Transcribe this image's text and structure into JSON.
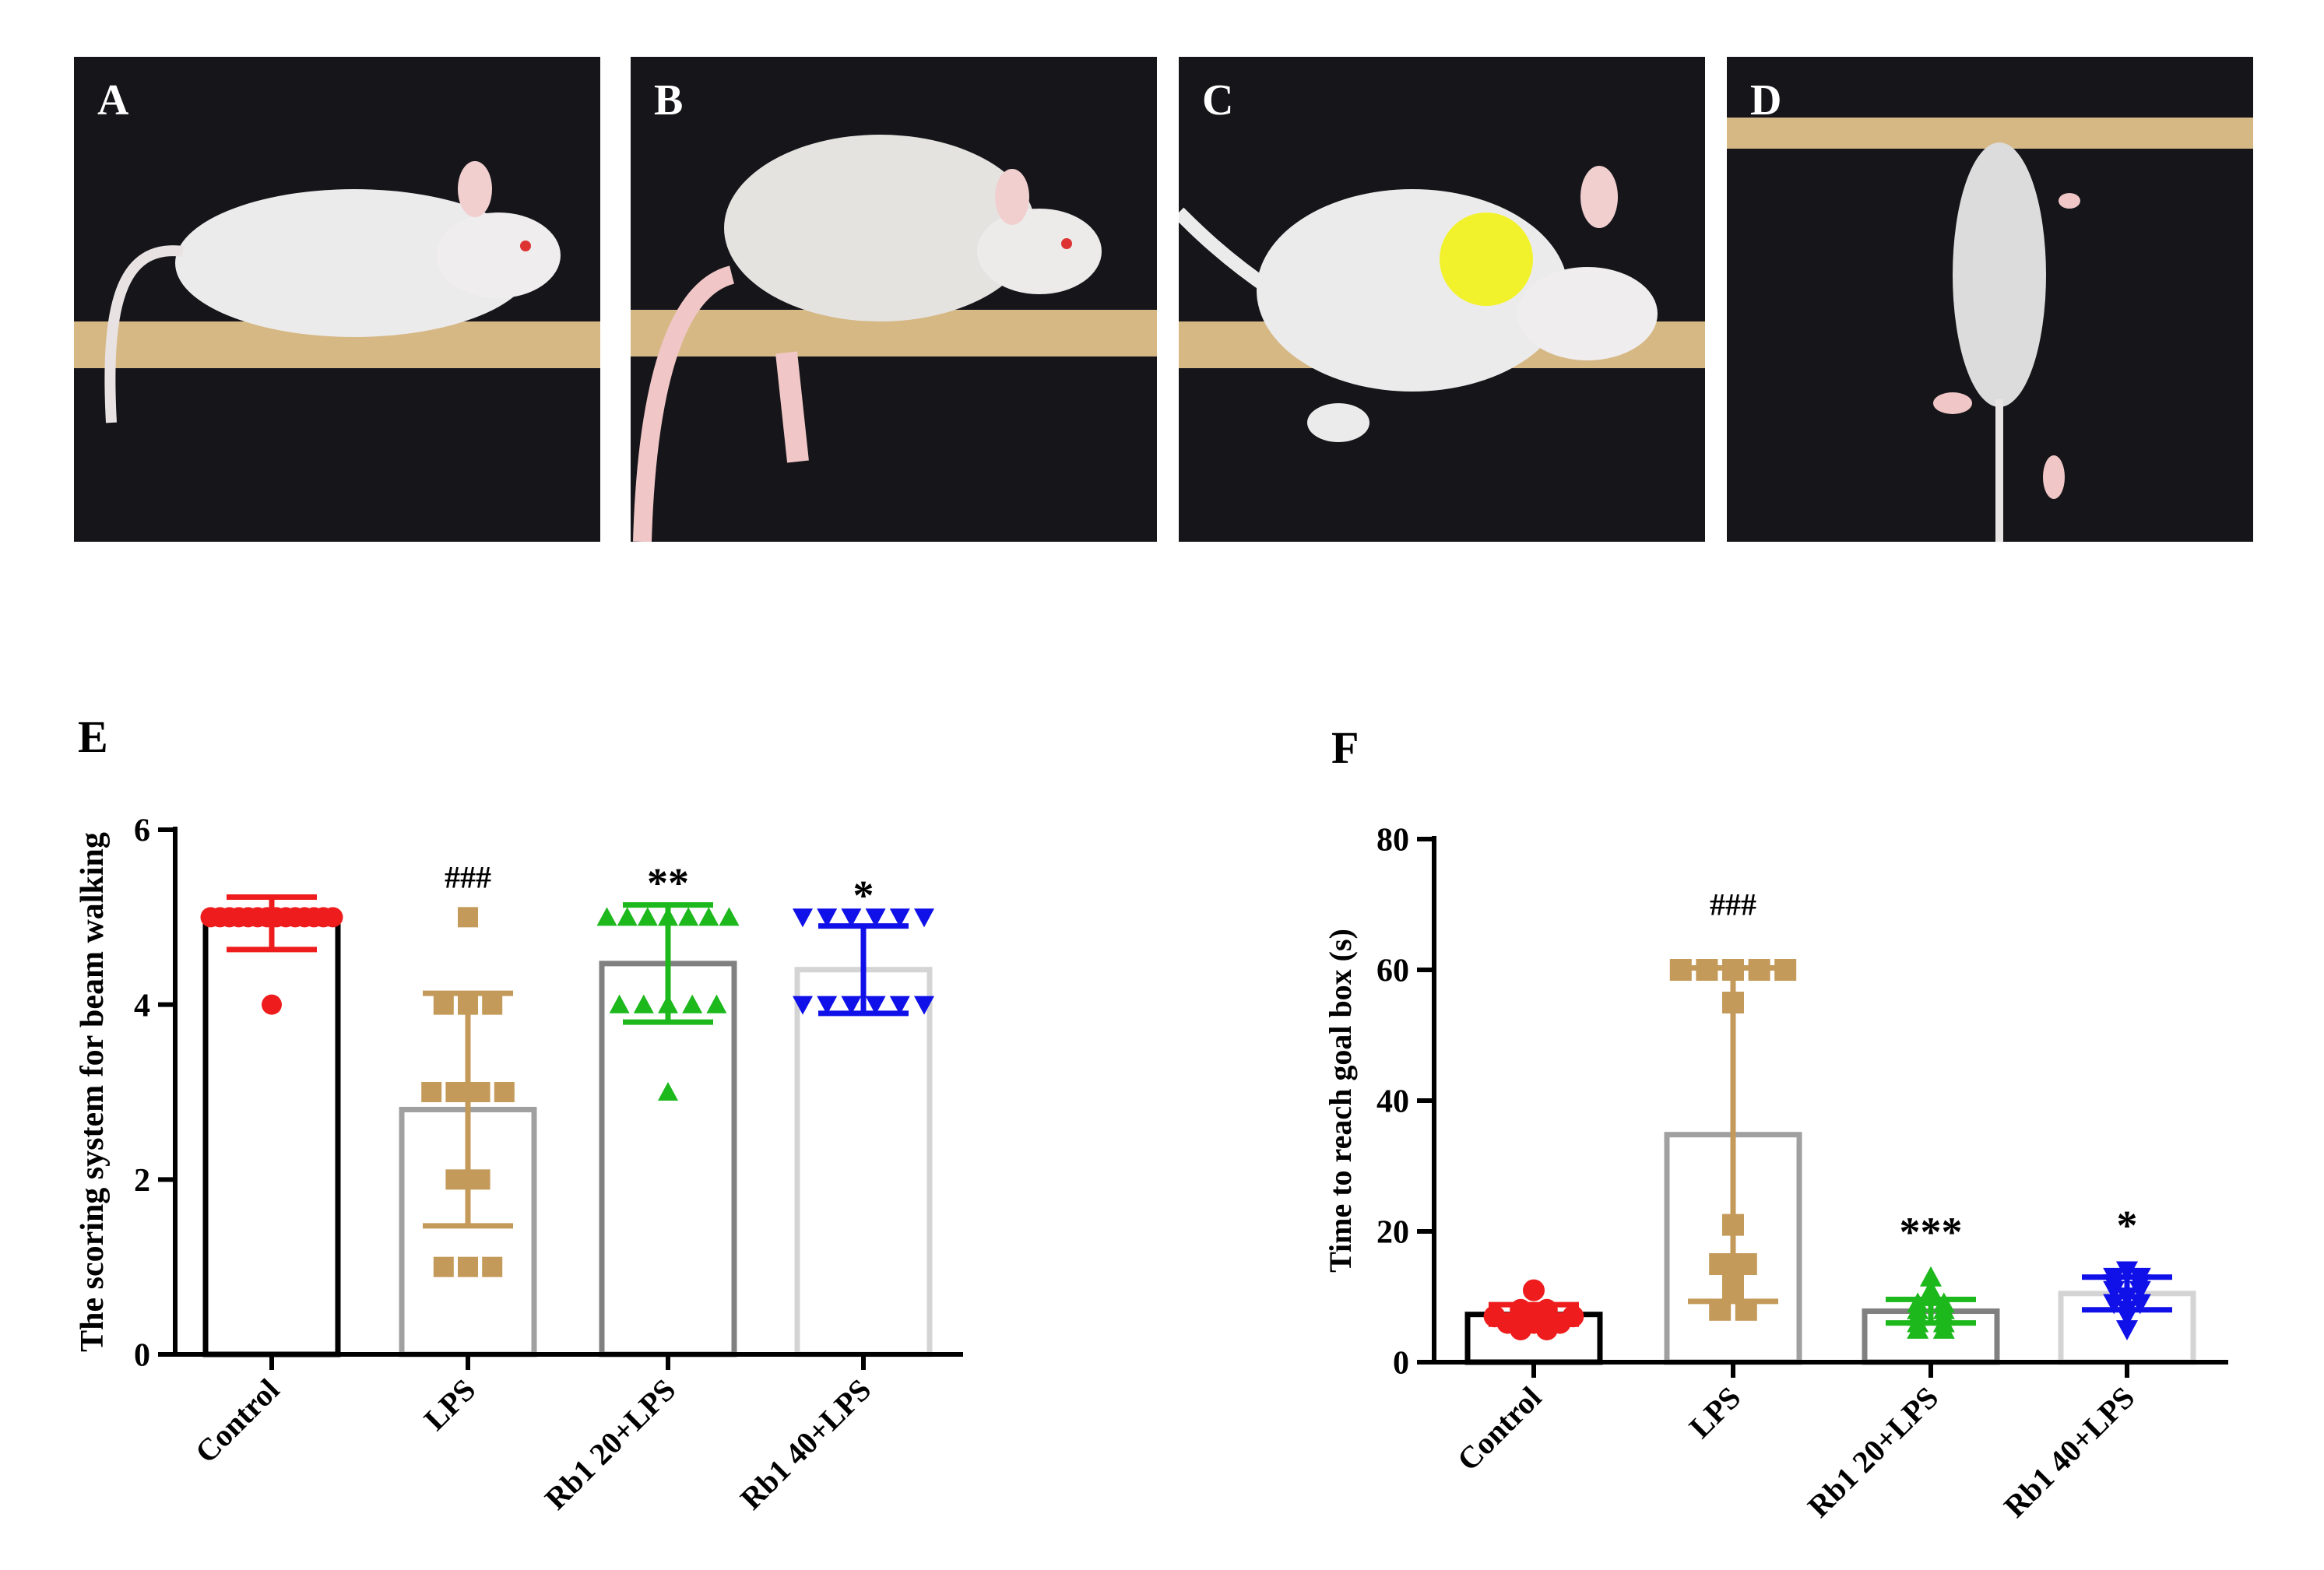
{
  "photos": [
    {
      "letter": "A",
      "description_icon": "mouse-on-beam-icon"
    },
    {
      "letter": "B",
      "description_icon": "mouse-slipping-icon"
    },
    {
      "letter": "C",
      "description_icon": "mouse-crouching-icon"
    },
    {
      "letter": "D",
      "description_icon": "mouse-hanging-icon"
    }
  ],
  "panel_labels": {
    "E": "E",
    "F": "F"
  },
  "colors": {
    "control": "#ee1c1c",
    "lps": "#c49a5a",
    "rb1_20": "#1cb81c",
    "rb1_40": "#1010e8",
    "bar_control": "#000000",
    "bar_lps": "#a0a0a0",
    "bar_rb20": "#808080",
    "bar_rb40": "#d4d4d4"
  },
  "chart_data": [
    {
      "type": "bar",
      "ylabel": "The scoring system for beam walking",
      "xlabel": "",
      "ylim": [
        0,
        6
      ],
      "yticks": [
        0,
        2,
        4,
        6
      ],
      "categories": [
        "Control",
        "LPS",
        "Rb1 20+LPS",
        "Rb1 40+LPS"
      ],
      "values": [
        4.93,
        2.8,
        4.47,
        4.4
      ],
      "sd": [
        0.3,
        1.33,
        0.67,
        0.5
      ],
      "annotations": [
        "",
        "###",
        "**",
        "*"
      ],
      "points": [
        [
          5,
          5,
          5,
          5,
          5,
          5,
          5,
          5,
          5,
          5,
          5,
          5,
          5,
          5,
          4
        ],
        [
          5,
          4,
          4,
          4,
          3,
          3,
          3,
          3,
          2,
          2,
          1,
          1,
          1
        ],
        [
          5,
          5,
          5,
          5,
          5,
          5,
          5,
          4,
          4,
          4,
          4,
          4,
          3
        ],
        [
          5,
          5,
          5,
          5,
          5,
          5,
          4,
          4,
          4,
          4,
          4,
          4
        ]
      ]
    },
    {
      "type": "bar",
      "ylabel": "Time to reach goal box (s)",
      "xlabel": "",
      "ylim": [
        0,
        80
      ],
      "yticks": [
        0,
        20,
        40,
        60,
        80
      ],
      "categories": [
        "Control",
        "LPS",
        "Rb1 20+LPS",
        "Rb1 40+LPS"
      ],
      "values": [
        7.3,
        34.8,
        7.8,
        10.5
      ],
      "sd": [
        1.5,
        25.5,
        1.8,
        2.5
      ],
      "annotations": [
        "",
        "###",
        "***",
        "*"
      ],
      "points": [
        [
          11,
          8,
          8,
          7,
          7,
          7,
          7,
          6,
          6,
          6,
          5,
          5
        ],
        [
          60,
          60,
          60,
          60,
          60,
          55,
          21,
          15,
          15,
          12,
          11,
          8,
          8
        ],
        [
          13,
          11,
          10,
          9,
          9,
          8,
          8,
          7,
          7,
          6,
          6,
          5,
          5
        ],
        [
          14,
          13,
          13,
          12,
          12,
          11,
          11,
          10,
          9,
          9,
          8,
          7,
          5
        ]
      ]
    }
  ]
}
